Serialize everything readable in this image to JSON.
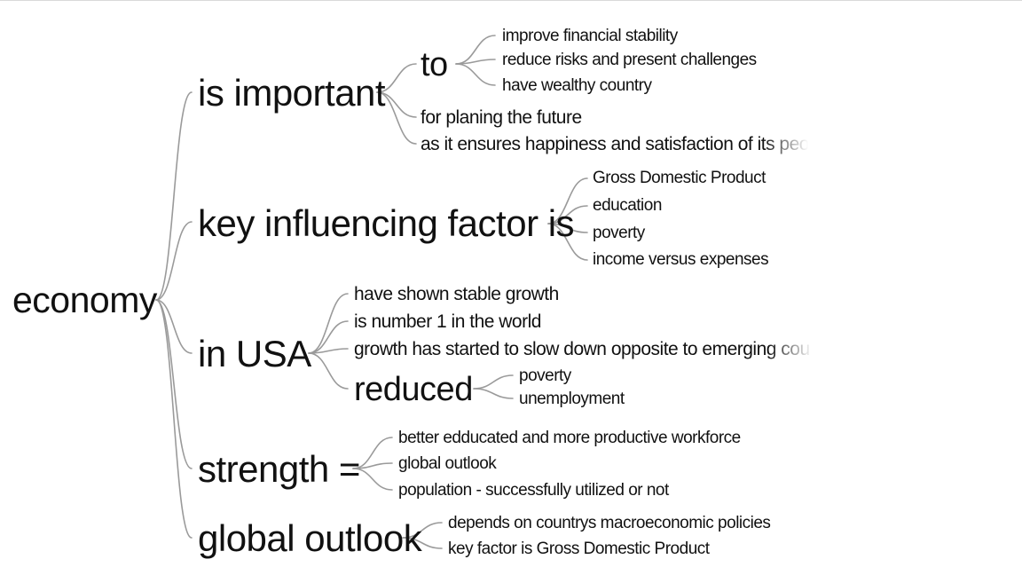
{
  "root": "economy",
  "branches": {
    "important": {
      "label": "is important",
      "to": {
        "label": "to",
        "items": [
          "improve financial stability",
          "reduce risks and present challenges",
          "have wealthy country"
        ]
      },
      "items": [
        "for planing the future",
        "as it ensures happiness and satisfaction of its peo"
      ]
    },
    "factor": {
      "label": "key influencing factor is",
      "items": [
        "Gross Domestic Product",
        "education",
        "poverty",
        "income versus expenses"
      ]
    },
    "usa": {
      "label": "in USA",
      "items": [
        "have shown stable growth",
        "is number 1 in the world",
        "growth has started to slow down opposite to emerging cou"
      ],
      "reduced": {
        "label": "reduced",
        "items": [
          "poverty",
          "unemployment"
        ]
      }
    },
    "strength": {
      "label": "strength =",
      "items": [
        "better edducated and more productive workforce",
        "global outlook",
        "population - successfully utilized or not"
      ]
    },
    "outlook": {
      "label": "global outlook",
      "items": [
        "depends on countrys macroeconomic policies",
        "key factor is Gross Domestic Product"
      ]
    }
  },
  "colors": {
    "text": "#111111",
    "edge": "#9a9a9a"
  }
}
